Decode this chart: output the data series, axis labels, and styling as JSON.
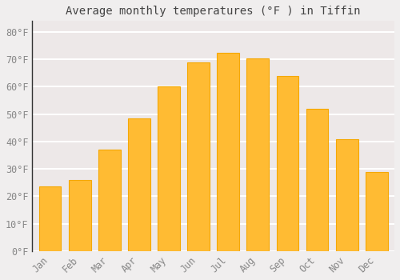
{
  "title": "Average monthly temperatures (°F ) in Tiffin",
  "months": [
    "Jan",
    "Feb",
    "Mar",
    "Apr",
    "May",
    "Jun",
    "Jul",
    "Aug",
    "Sep",
    "Oct",
    "Nov",
    "Dec"
  ],
  "values": [
    23.5,
    26,
    37,
    48.5,
    60,
    69,
    72.5,
    70.5,
    64,
    52,
    41,
    29
  ],
  "bar_color": "#FFBB33",
  "bar_edge_color": "#F5A800",
  "background_color": "#F0EEEE",
  "plot_bg_color": "#EDE8E8",
  "grid_color": "#FFFFFF",
  "text_color": "#888888",
  "title_color": "#444444",
  "spine_color": "#333333",
  "ylim": [
    0,
    84
  ],
  "yticks": [
    0,
    10,
    20,
    30,
    40,
    50,
    60,
    70,
    80
  ],
  "ytick_labels": [
    "0°F",
    "10°F",
    "20°F",
    "30°F",
    "40°F",
    "50°F",
    "60°F",
    "70°F",
    "80°F"
  ],
  "font_family": "monospace",
  "title_fontsize": 10,
  "tick_fontsize": 8.5,
  "bar_width": 0.75
}
